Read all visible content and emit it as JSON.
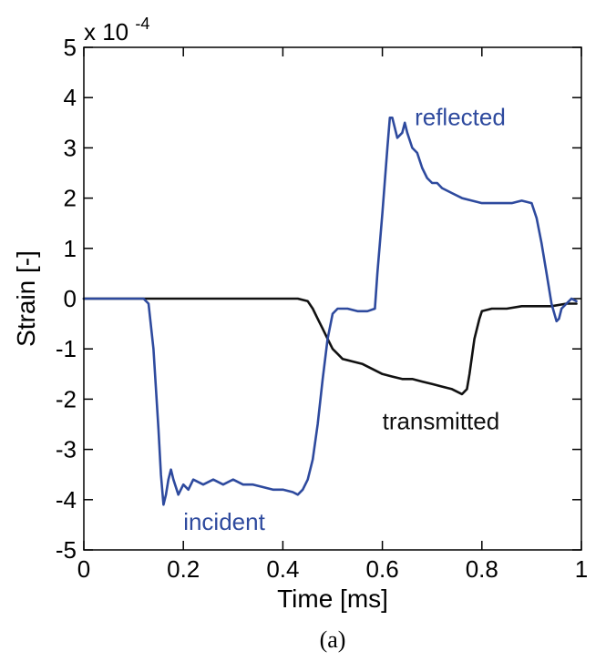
{
  "chart_data": {
    "type": "line",
    "xlabel": "Time [ms]",
    "ylabel": "Strain [-]",
    "y_exponent_prefix": "x 10",
    "y_exponent_power": "-4",
    "caption": "(a)",
    "xlim": [
      0,
      1
    ],
    "ylim": [
      -5,
      5
    ],
    "x_ticks": [
      0,
      0.2,
      0.4,
      0.6,
      0.8,
      1
    ],
    "x_tick_labels": [
      "0",
      "0.2",
      "0.4",
      "0.6",
      "0.8",
      "1"
    ],
    "y_ticks": [
      -5,
      -4,
      -3,
      -2,
      -1,
      0,
      1,
      2,
      3,
      4,
      5
    ],
    "y_tick_labels": [
      "-5",
      "-4",
      "-3",
      "-2",
      "-1",
      "0",
      "1",
      "2",
      "3",
      "4",
      "5"
    ],
    "grid": false,
    "y_scale_note": "values in units of 1e-4",
    "series": [
      {
        "name": "incident",
        "color": "#2e4a9e",
        "points": [
          [
            0.0,
            0.0
          ],
          [
            0.05,
            0.0
          ],
          [
            0.1,
            0.0
          ],
          [
            0.12,
            0.0
          ],
          [
            0.13,
            -0.1
          ],
          [
            0.14,
            -1.0
          ],
          [
            0.15,
            -2.6
          ],
          [
            0.155,
            -3.5
          ],
          [
            0.16,
            -4.1
          ],
          [
            0.165,
            -3.9
          ],
          [
            0.17,
            -3.6
          ],
          [
            0.175,
            -3.4
          ],
          [
            0.18,
            -3.6
          ],
          [
            0.19,
            -3.9
          ],
          [
            0.2,
            -3.7
          ],
          [
            0.21,
            -3.8
          ],
          [
            0.22,
            -3.6
          ],
          [
            0.24,
            -3.7
          ],
          [
            0.26,
            -3.6
          ],
          [
            0.28,
            -3.7
          ],
          [
            0.3,
            -3.6
          ],
          [
            0.32,
            -3.7
          ],
          [
            0.34,
            -3.7
          ],
          [
            0.36,
            -3.75
          ],
          [
            0.38,
            -3.8
          ],
          [
            0.4,
            -3.8
          ],
          [
            0.42,
            -3.85
          ],
          [
            0.43,
            -3.9
          ],
          [
            0.44,
            -3.8
          ],
          [
            0.45,
            -3.6
          ],
          [
            0.46,
            -3.2
          ],
          [
            0.47,
            -2.5
          ],
          [
            0.48,
            -1.6
          ],
          [
            0.49,
            -0.8
          ],
          [
            0.5,
            -0.3
          ],
          [
            0.51,
            -0.2
          ],
          [
            0.53,
            -0.2
          ],
          [
            0.55,
            -0.25
          ],
          [
            0.57,
            -0.25
          ],
          [
            0.585,
            -0.2
          ],
          [
            0.59,
            0.5
          ],
          [
            0.6,
            1.7
          ],
          [
            0.61,
            3.0
          ],
          [
            0.615,
            3.6
          ],
          [
            0.62,
            3.6
          ],
          [
            0.63,
            3.2
          ],
          [
            0.64,
            3.3
          ],
          [
            0.645,
            3.5
          ],
          [
            0.65,
            3.3
          ],
          [
            0.66,
            3.0
          ],
          [
            0.67,
            2.9
          ],
          [
            0.68,
            2.6
          ],
          [
            0.69,
            2.4
          ],
          [
            0.7,
            2.3
          ],
          [
            0.71,
            2.3
          ],
          [
            0.72,
            2.2
          ],
          [
            0.74,
            2.1
          ],
          [
            0.76,
            2.0
          ],
          [
            0.78,
            1.95
          ],
          [
            0.8,
            1.9
          ],
          [
            0.82,
            1.9
          ],
          [
            0.84,
            1.9
          ],
          [
            0.86,
            1.9
          ],
          [
            0.88,
            1.95
          ],
          [
            0.9,
            1.9
          ],
          [
            0.91,
            1.6
          ],
          [
            0.92,
            1.1
          ],
          [
            0.93,
            0.5
          ],
          [
            0.94,
            -0.1
          ],
          [
            0.95,
            -0.45
          ],
          [
            0.955,
            -0.4
          ],
          [
            0.96,
            -0.2
          ],
          [
            0.97,
            -0.1
          ],
          [
            0.98,
            0.0
          ],
          [
            0.99,
            -0.05
          ]
        ]
      },
      {
        "name": "transmitted",
        "color": "#111111",
        "points": [
          [
            0.0,
            0.0
          ],
          [
            0.1,
            0.0
          ],
          [
            0.2,
            0.0
          ],
          [
            0.3,
            0.0
          ],
          [
            0.4,
            0.0
          ],
          [
            0.43,
            0.0
          ],
          [
            0.45,
            -0.05
          ],
          [
            0.46,
            -0.2
          ],
          [
            0.47,
            -0.4
          ],
          [
            0.48,
            -0.6
          ],
          [
            0.49,
            -0.8
          ],
          [
            0.5,
            -1.0
          ],
          [
            0.51,
            -1.1
          ],
          [
            0.52,
            -1.2
          ],
          [
            0.54,
            -1.25
          ],
          [
            0.56,
            -1.3
          ],
          [
            0.58,
            -1.4
          ],
          [
            0.6,
            -1.5
          ],
          [
            0.62,
            -1.55
          ],
          [
            0.64,
            -1.6
          ],
          [
            0.66,
            -1.6
          ],
          [
            0.68,
            -1.65
          ],
          [
            0.7,
            -1.7
          ],
          [
            0.72,
            -1.75
          ],
          [
            0.74,
            -1.8
          ],
          [
            0.76,
            -1.9
          ],
          [
            0.77,
            -1.8
          ],
          [
            0.775,
            -1.5
          ],
          [
            0.785,
            -0.8
          ],
          [
            0.795,
            -0.4
          ],
          [
            0.8,
            -0.25
          ],
          [
            0.82,
            -0.2
          ],
          [
            0.85,
            -0.2
          ],
          [
            0.88,
            -0.15
          ],
          [
            0.91,
            -0.15
          ],
          [
            0.94,
            -0.15
          ],
          [
            0.97,
            -0.1
          ],
          [
            0.99,
            -0.1
          ]
        ]
      }
    ],
    "series_labels": [
      {
        "text": "reflected",
        "color": "#2e4a9e",
        "x": 0.665,
        "y": 3.45
      },
      {
        "text": "transmitted",
        "color": "#111111",
        "x": 0.6,
        "y": -2.6
      },
      {
        "text": "incident",
        "color": "#2e4a9e",
        "x": 0.2,
        "y": -4.6
      }
    ]
  }
}
